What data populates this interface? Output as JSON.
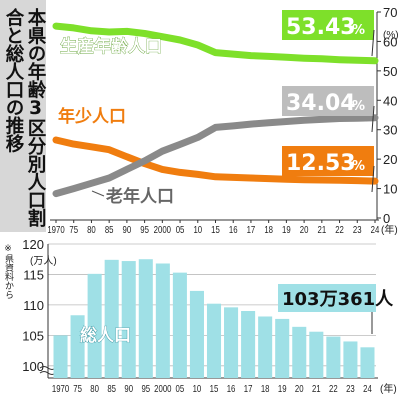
{
  "title": "本県の年齢3区分別人口割合と総人口の推移",
  "source_note": "※県資料から",
  "colors": {
    "working_age": "#7ee02a",
    "young": "#f07d0f",
    "elderly": "#8a8a8a",
    "population_bar": "#9fe0e6",
    "callout_green": "#7ee02a",
    "callout_orange": "#f07d0f",
    "callout_gray": "#bdbdbd",
    "callout_cyan": "#9fe0e6"
  },
  "chart_data": [
    {
      "type": "line",
      "x_tick_labels": [
        "1970",
        "75",
        "80",
        "85",
        "90",
        "95",
        "2000",
        "05",
        "10",
        "15",
        "16",
        "17",
        "18",
        "19",
        "20",
        "21",
        "22",
        "23",
        "24"
      ],
      "x_tick_suffix": "(年)",
      "y_unit": "(%)",
      "y_ticks": [
        "0",
        "10",
        "20",
        "30",
        "40",
        "50",
        "60",
        "70"
      ],
      "ylim": [
        0,
        70
      ],
      "series": [
        {
          "name": "生産年齢人口",
          "key": "working_age",
          "values": [
            65.2,
            64.6,
            63.6,
            63.2,
            63.4,
            62.7,
            61.6,
            60.5,
            58.8,
            56.2,
            55.7,
            55.2,
            54.9,
            54.6,
            54.3,
            54.1,
            53.8,
            53.6,
            53.43
          ]
        },
        {
          "name": "年少人口",
          "key": "young",
          "values": [
            26.5,
            25.1,
            24.2,
            23.2,
            20.8,
            18.5,
            16.5,
            15.5,
            14.8,
            14.0,
            13.8,
            13.6,
            13.4,
            13.2,
            13.0,
            12.9,
            12.8,
            12.7,
            12.53
          ]
        },
        {
          "name": "老年人口",
          "key": "elderly",
          "values": [
            8.3,
            10.0,
            11.8,
            13.6,
            16.5,
            19.4,
            22.7,
            25.0,
            27.4,
            30.8,
            31.3,
            31.9,
            32.4,
            32.8,
            33.2,
            33.5,
            33.8,
            33.9,
            34.04
          ]
        }
      ],
      "annotations": [
        {
          "series": "working_age",
          "text": "53.43",
          "unit": "%"
        },
        {
          "series": "elderly",
          "text": "34.04",
          "unit": "%"
        },
        {
          "series": "young",
          "text": "12.53",
          "unit": "%"
        }
      ]
    },
    {
      "type": "bar",
      "x_tick_labels": [
        "1970",
        "75",
        "80",
        "85",
        "90",
        "95",
        "2000",
        "05",
        "10",
        "15",
        "16",
        "17",
        "18",
        "19",
        "20",
        "21",
        "22",
        "23",
        "24"
      ],
      "x_tick_suffix": "(年)",
      "y_unit": "(万人)",
      "y_ticks": [
        "100",
        "105",
        "110",
        "115",
        "120"
      ],
      "ylim": [
        98,
        120
      ],
      "series_label": "総人口",
      "values": [
        105.0,
        108.3,
        115.1,
        117.4,
        117.2,
        117.5,
        116.8,
        115.3,
        112.3,
        110.2,
        109.6,
        109.0,
        108.1,
        107.7,
        106.4,
        105.6,
        104.8,
        104.0,
        103.04
      ],
      "annotation": {
        "text": "103万361人"
      }
    }
  ]
}
